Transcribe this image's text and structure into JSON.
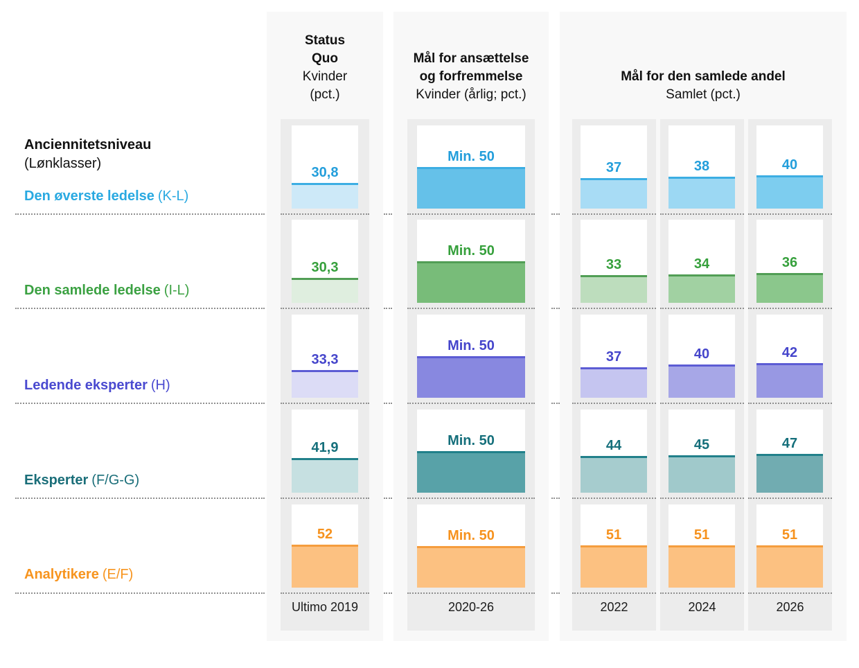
{
  "palette": {
    "page_background": "#ffffff",
    "panel_background": "#f8f8f8",
    "column_track_background": "#ececec",
    "cell_background": "#ffffff",
    "dotted_line": "#8f8f8f",
    "header_text": "#111111",
    "column_label_text": "#1a1a1a"
  },
  "chart_data": {
    "type": "bar",
    "scale_max": 100,
    "grid": "off",
    "legend": "none",
    "row_axis": {
      "title": "Anciennitetsniveau",
      "subtitle": "(Lønklasser)"
    },
    "groups": [
      {
        "title_lines_bold": [
          "Status",
          "Quo"
        ],
        "subtitle_lines": [
          "Kvinder",
          "(pct.)"
        ],
        "columns": [
          "Ultimo 2019"
        ]
      },
      {
        "title_lines_bold": [
          "Mål for ansættelse",
          "og forfremmelse"
        ],
        "subtitle_lines": [
          "Kvinder (årlig; pct.)"
        ],
        "columns": [
          "2020-26"
        ]
      },
      {
        "title_lines_bold": [
          "Mål for den samlede andel"
        ],
        "subtitle_lines": [
          "Samlet (pct.)"
        ],
        "columns": [
          "2022",
          "2024",
          "2026"
        ]
      }
    ],
    "rows": [
      {
        "label": "Den øverste ledelse",
        "label_suffix": "(K-L)",
        "theme": {
          "text": "#29A9E1",
          "value_text": "#239EDB",
          "border": "#3CAEE3"
        },
        "cells": [
          {
            "column": "Ultimo 2019",
            "label": "30,8",
            "value": 30.8,
            "fill": "#CDE9F8"
          },
          {
            "column": "2020-26",
            "label": "Min. 50",
            "value": 50,
            "fill": "#65C1E9"
          },
          {
            "column": "2022",
            "label": "37",
            "value": 37,
            "fill": "#A8DCF5"
          },
          {
            "column": "2024",
            "label": "38",
            "value": 38,
            "fill": "#9CD8F3"
          },
          {
            "column": "2026",
            "label": "40",
            "value": 40,
            "fill": "#7DCDEF"
          }
        ]
      },
      {
        "label": "Den samlede ledelse",
        "label_suffix": "(I-L)",
        "theme": {
          "text": "#3BA142",
          "value_text": "#36A03C",
          "border": "#519E55"
        },
        "cells": [
          {
            "column": "Ultimo 2019",
            "label": "30,3",
            "value": 30.3,
            "fill": "#DFEEDF"
          },
          {
            "column": "2020-26",
            "label": "Min. 50",
            "value": 50,
            "fill": "#78BC79"
          },
          {
            "column": "2022",
            "label": "33",
            "value": 33,
            "fill": "#BDDDBD"
          },
          {
            "column": "2024",
            "label": "34",
            "value": 34,
            "fill": "#A1D1A2"
          },
          {
            "column": "2026",
            "label": "36",
            "value": 36,
            "fill": "#8BC78C"
          }
        ]
      },
      {
        "label": "Ledende eksperter",
        "label_suffix": "(H)",
        "theme": {
          "text": "#4A4AD0",
          "value_text": "#4545CB",
          "border": "#5C5CD4"
        },
        "cells": [
          {
            "column": "Ultimo 2019",
            "label": "33,3",
            "value": 33.3,
            "fill": "#DCDCF6"
          },
          {
            "column": "2020-26",
            "label": "Min. 50",
            "value": 50,
            "fill": "#8888E0"
          },
          {
            "column": "2022",
            "label": "37",
            "value": 37,
            "fill": "#C5C5F0"
          },
          {
            "column": "2024",
            "label": "40",
            "value": 40,
            "fill": "#A7A7E7"
          },
          {
            "column": "2026",
            "label": "42",
            "value": 42,
            "fill": "#9898E3"
          }
        ]
      },
      {
        "label": "Eksperter",
        "label_suffix": "(F/G-G)",
        "theme": {
          "text": "#1A6E79",
          "value_text": "#156F7B",
          "border": "#21808A"
        },
        "cells": [
          {
            "column": "Ultimo 2019",
            "label": "41,9",
            "value": 41.9,
            "fill": "#C6E0E1"
          },
          {
            "column": "2020-26",
            "label": "Min. 50",
            "value": 50,
            "fill": "#58A2A8"
          },
          {
            "column": "2022",
            "label": "44",
            "value": 44,
            "fill": "#A6CCCE"
          },
          {
            "column": "2024",
            "label": "45",
            "value": 45,
            "fill": "#A0C9CB"
          },
          {
            "column": "2026",
            "label": "47",
            "value": 47,
            "fill": "#71ACB1"
          }
        ]
      },
      {
        "label": "Analytikere",
        "label_suffix": "(E/F)",
        "theme": {
          "text": "#F7941E",
          "value_text": "#F6921E",
          "border": "#F59D3E"
        },
        "cells": [
          {
            "column": "Ultimo 2019",
            "label": "52",
            "value": 52,
            "fill": "#FCC181"
          },
          {
            "column": "2020-26",
            "label": "Min. 50",
            "value": 50,
            "fill": "#FCC181"
          },
          {
            "column": "2022",
            "label": "51",
            "value": 51,
            "fill": "#FCC181"
          },
          {
            "column": "2024",
            "label": "51",
            "value": 51,
            "fill": "#FCC181"
          },
          {
            "column": "2026",
            "label": "51",
            "value": 51,
            "fill": "#FCC181"
          }
        ]
      }
    ]
  }
}
